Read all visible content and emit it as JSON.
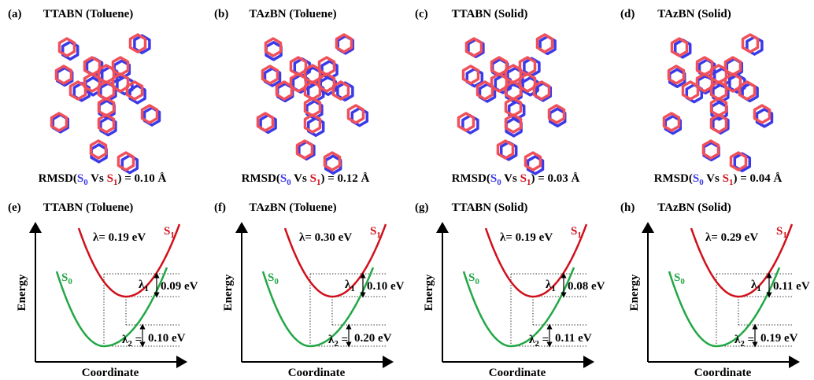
{
  "panels_top": [
    {
      "label": "(a)",
      "title": "TTABN (Toluene)",
      "rmsd_value": "= 0.10 Å"
    },
    {
      "label": "(b)",
      "title": "TAzBN (Toluene)",
      "rmsd_value": "= 0.12 Å"
    },
    {
      "label": "(c)",
      "title": "TTABN (Solid)",
      "rmsd_value": "= 0.03 Å"
    },
    {
      "label": "(d)",
      "title": "TAzBN (Solid)",
      "rmsd_value": "= 0.04 Å"
    }
  ],
  "rmsd_text": {
    "prefix": "RMSD(",
    "state": "S",
    "sub0": "0",
    "vs": " Vs ",
    "sub1": "1",
    "close": ") "
  },
  "panels_bottom": [
    {
      "label": "(e)",
      "title": "TTABN (Toluene)",
      "lambda": "λ= 0.19 eV",
      "lambda1": "0.09 eV",
      "lambda2": "0.10 eV"
    },
    {
      "label": "(f)",
      "title": "TAzBN (Toluene)",
      "lambda": "λ= 0.30 eV",
      "lambda1": "0.10 eV",
      "lambda2": "0.20 eV"
    },
    {
      "label": "(g)",
      "title": "TTABN (Solid)",
      "lambda": "λ= 0.19 eV",
      "lambda1": "0.08 eV",
      "lambda2": "0.11 eV"
    },
    {
      "label": "(h)",
      "title": "TAzBN (Solid)",
      "lambda": "λ= 0.29 eV",
      "lambda1": "0.11 eV",
      "lambda2": "0.19 eV"
    }
  ],
  "diagram_text": {
    "y_axis": "Energy",
    "x_axis": "Coordinate",
    "state": "S",
    "sub0": "0",
    "sub1": "1",
    "lambda": "λ",
    "sub_l1": "1",
    "sub_l2": "2",
    "equals": " ="
  }
}
